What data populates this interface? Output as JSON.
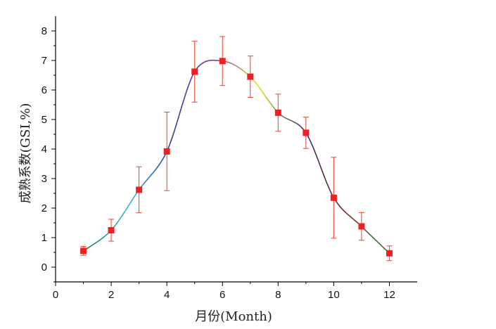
{
  "chart_data": {
    "type": "scatter",
    "xlabel": "月份(Month)",
    "ylabel": "成熟系数(GSI,%)",
    "xlim": [
      0,
      13
    ],
    "ylim": [
      -0.5,
      8.5
    ],
    "x_ticks": [
      0,
      2,
      4,
      6,
      8,
      10,
      12
    ],
    "y_ticks": [
      0,
      1,
      2,
      3,
      4,
      5,
      6,
      7,
      8
    ],
    "grid": false,
    "series": [
      {
        "x": [
          1,
          2,
          3,
          4,
          5,
          6,
          7,
          8,
          9,
          10,
          11,
          12
        ],
        "values": [
          0.55,
          1.25,
          2.62,
          3.92,
          6.62,
          6.98,
          6.45,
          5.23,
          4.55,
          2.35,
          1.38,
          0.47
        ],
        "error": [
          0.15,
          0.37,
          0.78,
          1.33,
          1.03,
          0.83,
          0.7,
          0.63,
          0.53,
          1.37,
          0.47,
          0.25
        ],
        "marker": "square",
        "color": "#ee2024"
      }
    ],
    "fit_curve": {
      "color_gradient": [
        "#1e7a2a",
        "#37b8e0",
        "#2a3fa0",
        "#8a3aa0",
        "#e8e22a",
        "#3a2a6e",
        "#7a2a2a",
        "#2a8a3a"
      ]
    }
  }
}
